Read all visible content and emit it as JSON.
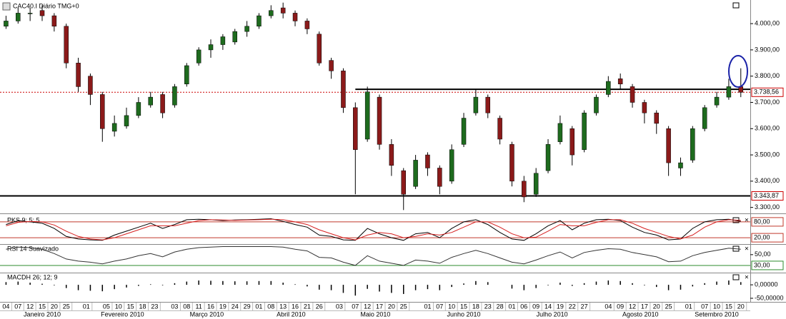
{
  "x_axis": {
    "xlim": [
      -0.5,
      186
    ],
    "days": [
      {
        "value": 1,
        "label": "04"
      },
      {
        "value": 4,
        "label": "07"
      },
      {
        "value": 7,
        "label": "12"
      },
      {
        "value": 10,
        "label": "15"
      },
      {
        "value": 13,
        "label": "20"
      },
      {
        "value": 16,
        "label": "25"
      },
      {
        "value": 21,
        "label": "01"
      },
      {
        "value": 26,
        "label": "05"
      },
      {
        "value": 29,
        "label": "10"
      },
      {
        "value": 32,
        "label": "15"
      },
      {
        "value": 35,
        "label": "18"
      },
      {
        "value": 38,
        "label": "23"
      },
      {
        "value": 43,
        "label": "03"
      },
      {
        "value": 46,
        "label": "08"
      },
      {
        "value": 49,
        "label": "11"
      },
      {
        "value": 52,
        "label": "16"
      },
      {
        "value": 55,
        "label": "19"
      },
      {
        "value": 58,
        "label": "24"
      },
      {
        "value": 61,
        "label": "29"
      },
      {
        "value": 64,
        "label": "01"
      },
      {
        "value": 67,
        "label": "08"
      },
      {
        "value": 70,
        "label": "13"
      },
      {
        "value": 73,
        "label": "16"
      },
      {
        "value": 76,
        "label": "21"
      },
      {
        "value": 79,
        "label": "26"
      },
      {
        "value": 84,
        "label": "03"
      },
      {
        "value": 88,
        "label": "07"
      },
      {
        "value": 91,
        "label": "12"
      },
      {
        "value": 94,
        "label": "17"
      },
      {
        "value": 97,
        "label": "20"
      },
      {
        "value": 100,
        "label": "25"
      },
      {
        "value": 106,
        "label": "01"
      },
      {
        "value": 109,
        "label": "07"
      },
      {
        "value": 112,
        "label": "10"
      },
      {
        "value": 115,
        "label": "15"
      },
      {
        "value": 118,
        "label": "18"
      },
      {
        "value": 121,
        "label": "23"
      },
      {
        "value": 124,
        "label": "28"
      },
      {
        "value": 127,
        "label": "01"
      },
      {
        "value": 130,
        "label": "06"
      },
      {
        "value": 133,
        "label": "09"
      },
      {
        "value": 136,
        "label": "14"
      },
      {
        "value": 139,
        "label": "19"
      },
      {
        "value": 142,
        "label": "22"
      },
      {
        "value": 145,
        "label": "27"
      },
      {
        "value": 151,
        "label": "04"
      },
      {
        "value": 154,
        "label": "09"
      },
      {
        "value": 157,
        "label": "12"
      },
      {
        "value": 160,
        "label": "17"
      },
      {
        "value": 163,
        "label": "20"
      },
      {
        "value": 166,
        "label": "25"
      },
      {
        "value": 171,
        "label": "01"
      },
      {
        "value": 175,
        "label": "07"
      },
      {
        "value": 178,
        "label": "10"
      },
      {
        "value": 181,
        "label": "15"
      },
      {
        "value": 184,
        "label": "20"
      }
    ],
    "months": [
      {
        "value": 10,
        "label": "Janeiro 2010"
      },
      {
        "value": 30,
        "label": "Fevereiro 2010"
      },
      {
        "value": 51,
        "label": "Março 2010"
      },
      {
        "value": 72,
        "label": "Abril 2010"
      },
      {
        "value": 93,
        "label": "Maio 2010"
      },
      {
        "value": 115,
        "label": "Junho 2010"
      },
      {
        "value": 137,
        "label": "Julho 2010"
      },
      {
        "value": 159,
        "label": "Agosto 2010"
      },
      {
        "value": 178,
        "label": "Setembro 2010"
      }
    ]
  },
  "chart_data": [
    {
      "type": "candlestick",
      "title": "CAC40.I Diário TMG+0",
      "x": [
        1,
        4,
        7,
        10,
        13,
        16,
        19,
        22,
        25,
        28,
        31,
        34,
        37,
        40,
        43,
        46,
        49,
        52,
        55,
        58,
        61,
        64,
        67,
        70,
        73,
        76,
        79,
        82,
        85,
        88,
        91,
        94,
        97,
        100,
        103,
        106,
        109,
        112,
        115,
        118,
        121,
        124,
        127,
        130,
        133,
        136,
        139,
        142,
        145,
        148,
        151,
        154,
        157,
        160,
        163,
        166,
        169,
        172,
        175,
        178,
        181,
        184
      ],
      "open": [
        3990,
        4010,
        4040,
        4050,
        4030,
        3990,
        3850,
        3800,
        3730,
        3590,
        3610,
        3650,
        3690,
        3730,
        3690,
        3770,
        3850,
        3900,
        3920,
        3930,
        3970,
        3990,
        4030,
        4060,
        4040,
        4010,
        3960,
        3860,
        3820,
        3680,
        3560,
        3720,
        3540,
        3440,
        3380,
        3500,
        3450,
        3400,
        3540,
        3660,
        3720,
        3640,
        3540,
        3400,
        3350,
        3440,
        3550,
        3600,
        3520,
        3660,
        3730,
        3790,
        3760,
        3700,
        3660,
        3600,
        3450,
        3480,
        3600,
        3690,
        3720,
        3760
      ],
      "high": [
        4030,
        4060,
        4060,
        4070,
        4040,
        4000,
        3870,
        3810,
        3740,
        3650,
        3680,
        3720,
        3740,
        3740,
        3770,
        3850,
        3910,
        3940,
        3960,
        3980,
        4010,
        4040,
        4070,
        4080,
        4050,
        4020,
        3970,
        3870,
        3830,
        3700,
        3760,
        3730,
        3560,
        3450,
        3500,
        3510,
        3460,
        3540,
        3660,
        3750,
        3730,
        3650,
        3550,
        3420,
        3450,
        3560,
        3650,
        3610,
        3670,
        3730,
        3800,
        3810,
        3770,
        3710,
        3670,
        3610,
        3490,
        3610,
        3690,
        3740,
        3790,
        3830
      ],
      "low": [
        3980,
        4000,
        4010,
        4010,
        3970,
        3830,
        3740,
        3690,
        3550,
        3570,
        3600,
        3640,
        3680,
        3640,
        3680,
        3760,
        3840,
        3870,
        3900,
        3920,
        3950,
        3980,
        4020,
        4020,
        3990,
        3960,
        3840,
        3790,
        3660,
        3350,
        3550,
        3520,
        3420,
        3290,
        3370,
        3420,
        3350,
        3390,
        3530,
        3650,
        3640,
        3540,
        3380,
        3320,
        3340,
        3430,
        3540,
        3460,
        3510,
        3650,
        3720,
        3750,
        3680,
        3620,
        3580,
        3420,
        3420,
        3470,
        3590,
        3680,
        3710,
        3720
      ],
      "close": [
        4010,
        4040,
        4040,
        4030,
        3990,
        3850,
        3760,
        3730,
        3600,
        3620,
        3650,
        3700,
        3720,
        3660,
        3760,
        3840,
        3900,
        3920,
        3950,
        3970,
        3990,
        4030,
        4050,
        4040,
        4010,
        3980,
        3850,
        3820,
        3680,
        3520,
        3740,
        3540,
        3460,
        3350,
        3480,
        3450,
        3380,
        3520,
        3640,
        3720,
        3660,
        3560,
        3400,
        3340,
        3430,
        3540,
        3620,
        3500,
        3660,
        3720,
        3780,
        3770,
        3700,
        3660,
        3620,
        3470,
        3470,
        3600,
        3680,
        3720,
        3760,
        3738.56
      ],
      "up_color": "#1e6b1e",
      "down_color": "#8b1a1a",
      "ylim": [
        3280,
        4090
      ],
      "yticks": [
        {
          "value": 4000,
          "label": "4.000,00"
        },
        {
          "value": 3900,
          "label": "3.900,00"
        },
        {
          "value": 3800,
          "label": "3.800,00"
        },
        {
          "value": 3700,
          "label": "3.700,00"
        },
        {
          "value": 3600,
          "label": "3.600,00"
        },
        {
          "value": 3500,
          "label": "3.500,00"
        },
        {
          "value": 3400,
          "label": "3.400,00"
        },
        {
          "value": 3300,
          "label": "3.300,00"
        }
      ],
      "last_price": {
        "value": 3738.56,
        "label": "3.738,56"
      },
      "support": {
        "value": 3343.87,
        "label": "3.343,87"
      },
      "resistance": {
        "value": 3750,
        "x_start": 88
      }
    },
    {
      "type": "line",
      "title": "PKS 9; 5; 5",
      "ylim": [
        0,
        100
      ],
      "levels": [
        {
          "value": 80,
          "label": "80,00"
        },
        {
          "value": 20,
          "label": "20,00"
        }
      ],
      "level_color": "#c0392b",
      "series": [
        {
          "color": "#000000",
          "values": [
            70,
            85,
            80,
            75,
            55,
            25,
            15,
            12,
            10,
            30,
            45,
            60,
            75,
            55,
            70,
            88,
            90,
            88,
            85,
            87,
            88,
            90,
            92,
            82,
            70,
            60,
            30,
            25,
            12,
            10,
            55,
            35,
            20,
            10,
            35,
            40,
            20,
            55,
            80,
            88,
            70,
            40,
            15,
            10,
            35,
            65,
            85,
            50,
            75,
            88,
            90,
            85,
            60,
            40,
            30,
            12,
            15,
            55,
            80,
            88,
            90,
            82
          ]
        },
        {
          "color": "#d62020",
          "values": [
            65,
            78,
            82,
            80,
            68,
            45,
            25,
            15,
            12,
            20,
            35,
            50,
            65,
            65,
            65,
            75,
            85,
            88,
            87,
            86,
            87,
            88,
            90,
            88,
            80,
            70,
            50,
            35,
            20,
            12,
            30,
            40,
            35,
            20,
            25,
            35,
            30,
            40,
            60,
            80,
            80,
            60,
            35,
            20,
            22,
            45,
            70,
            65,
            65,
            78,
            88,
            88,
            75,
            55,
            40,
            25,
            15,
            30,
            60,
            80,
            88,
            86
          ]
        }
      ]
    },
    {
      "type": "line",
      "title": "RSI 14 Suavizado",
      "ylim": [
        18,
        67
      ],
      "yticks": [
        {
          "value": 50,
          "label": "50,00"
        }
      ],
      "levels": [
        {
          "value": 30,
          "label": "30,00"
        }
      ],
      "level_color": "#2e8b2e",
      "series": [
        {
          "color": "#333333",
          "values": [
            60,
            64,
            63,
            60,
            52,
            42,
            38,
            36,
            33,
            38,
            42,
            48,
            52,
            46,
            55,
            60,
            63,
            64,
            65,
            65,
            65,
            65,
            65,
            64,
            60,
            57,
            45,
            44,
            36,
            30,
            48,
            38,
            34,
            30,
            40,
            38,
            34,
            45,
            52,
            58,
            52,
            44,
            36,
            33,
            40,
            48,
            55,
            44,
            54,
            58,
            61,
            60,
            54,
            50,
            46,
            37,
            38,
            48,
            54,
            58,
            62,
            60
          ]
        }
      ]
    },
    {
      "type": "bar",
      "title": "MACDH 26; 12; 9",
      "ylim": [
        -66,
        40
      ],
      "color": "#000000",
      "yticks": [
        {
          "value": 0,
          "label": "0,00000"
        },
        {
          "value": -50,
          "label": "-50,00000"
        }
      ],
      "values": [
        10,
        12,
        8,
        4,
        -2,
        -12,
        -20,
        -22,
        -24,
        -16,
        -10,
        -4,
        2,
        -2,
        6,
        12,
        16,
        15,
        14,
        13,
        13,
        14,
        14,
        8,
        2,
        -6,
        -18,
        -20,
        -30,
        -40,
        -15,
        -25,
        -30,
        -34,
        -20,
        -16,
        -20,
        -8,
        5,
        14,
        10,
        0,
        -14,
        -20,
        -12,
        -2,
        8,
        -4,
        6,
        12,
        16,
        14,
        6,
        -2,
        -8,
        -20,
        -18,
        -6,
        6,
        12,
        16,
        10
      ]
    }
  ]
}
